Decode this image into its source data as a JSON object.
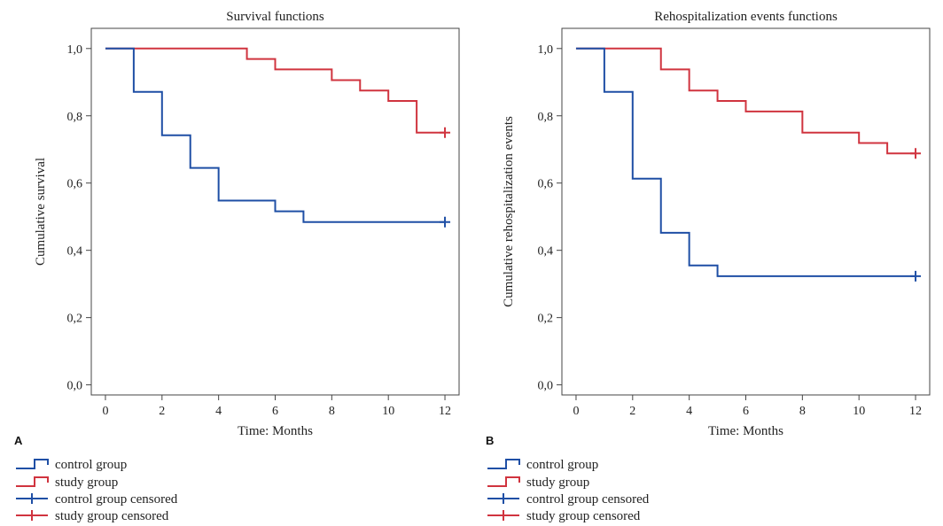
{
  "colors": {
    "control": "#1f4fa5",
    "study": "#d0343f",
    "axis": "#444444"
  },
  "legend": [
    {
      "label": "control group",
      "series": "control",
      "kind": "step"
    },
    {
      "label": "study group",
      "series": "study",
      "kind": "step"
    },
    {
      "label": "control group censored",
      "series": "control",
      "kind": "censor"
    },
    {
      "label": "study group censored",
      "series": "study",
      "kind": "censor"
    }
  ],
  "chart_data": [
    {
      "panel_label": "A",
      "type": "line",
      "title": "Survival functions",
      "xlabel": "Time: Months",
      "ylabel": "Cumulative survival",
      "xlim": [
        -0.5,
        12.5
      ],
      "ylim": [
        -0.03,
        1.06
      ],
      "x_ticks": [
        0,
        2,
        4,
        6,
        8,
        10,
        12
      ],
      "y_ticks": [
        "0,0",
        "0,2",
        "0,4",
        "0,6",
        "0,8",
        "1,0"
      ],
      "y_tick_values": [
        0,
        0.2,
        0.4,
        0.6,
        0.8,
        1.0
      ],
      "series": [
        {
          "name": "study group",
          "color_key": "study",
          "step_x": [
            0,
            5,
            6,
            8,
            9,
            10,
            11,
            12
          ],
          "step_y": [
            1.0,
            0.969,
            0.938,
            0.906,
            0.875,
            0.844,
            0.75,
            0.75
          ],
          "censored": [
            [
              12,
              0.75
            ]
          ]
        },
        {
          "name": "control group",
          "color_key": "control",
          "step_x": [
            0,
            1,
            2,
            3,
            4,
            6,
            7,
            12
          ],
          "step_y": [
            1.0,
            0.871,
            0.742,
            0.645,
            0.548,
            0.516,
            0.484,
            0.484
          ],
          "censored": [
            [
              12,
              0.484
            ]
          ]
        }
      ]
    },
    {
      "panel_label": "B",
      "type": "line",
      "title": "Rehospitalization events functions",
      "xlabel": "Time: Months",
      "ylabel": "Cumulative rehospitalization events",
      "xlim": [
        -0.5,
        12.5
      ],
      "ylim": [
        -0.03,
        1.06
      ],
      "x_ticks": [
        0,
        2,
        4,
        6,
        8,
        10,
        12
      ],
      "y_ticks": [
        "0,0",
        "0,2",
        "0,4",
        "0,6",
        "0,8",
        "1,0"
      ],
      "y_tick_values": [
        0,
        0.2,
        0.4,
        0.6,
        0.8,
        1.0
      ],
      "series": [
        {
          "name": "study group",
          "color_key": "study",
          "step_x": [
            0,
            3,
            4,
            5,
            6,
            8,
            10,
            11,
            12
          ],
          "step_y": [
            1.0,
            0.938,
            0.875,
            0.844,
            0.813,
            0.75,
            0.719,
            0.688,
            0.688
          ],
          "censored": [
            [
              12,
              0.688
            ]
          ]
        },
        {
          "name": "control group",
          "color_key": "control",
          "step_x": [
            0,
            1,
            2,
            3,
            4,
            5,
            12
          ],
          "step_y": [
            1.0,
            0.871,
            0.613,
            0.452,
            0.355,
            0.323,
            0.323
          ],
          "censored": [
            [
              12,
              0.323
            ]
          ]
        }
      ]
    }
  ]
}
